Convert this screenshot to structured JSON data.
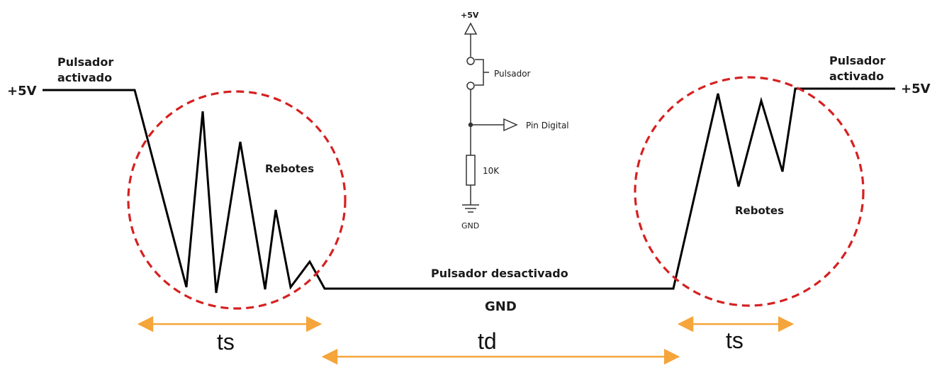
{
  "labels": {
    "plus5v_left": "+5V",
    "plus5v_right": "+5V",
    "pressed_left_line1": "Pulsador",
    "pressed_left_line2": "activado",
    "pressed_right_line1": "Pulsador",
    "pressed_right_line2": "activado",
    "bounces_left": "Rebotes",
    "bounces_right": "Rebotes",
    "released": "Pulsador desactivado",
    "gnd": "GND",
    "ts_left": "ts",
    "td": "td",
    "ts_right": "ts"
  },
  "schematic": {
    "supply": "+5V",
    "button": "Pulsador",
    "pin": "Pin Digital",
    "resistor": "10K",
    "ground": "GND"
  },
  "colors": {
    "signal": "#000000",
    "circle": "#d62020",
    "arrow": "#f5a53a"
  }
}
